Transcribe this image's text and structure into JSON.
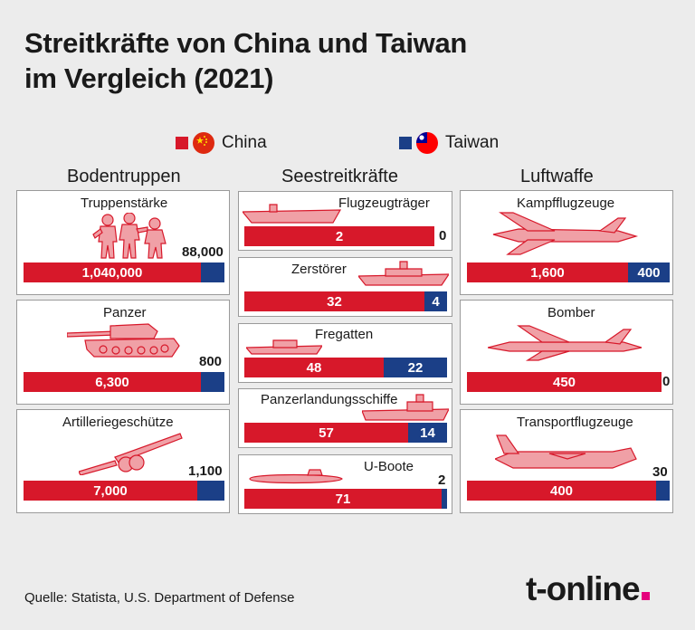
{
  "title_lines": [
    "Streitkräfte von China und Taiwan",
    "im Vergleich (2021)"
  ],
  "legend": {
    "china": "China",
    "taiwan": "Taiwan"
  },
  "colors": {
    "china": "#d7182a",
    "taiwan": "#1b3f87",
    "icon": "#f0a0a6",
    "icon_stroke": "#d7182a",
    "brand_dot": "#e5007d"
  },
  "sections": {
    "ground": "Bodentruppen",
    "sea": "Seestreitkräfte",
    "air": "Luftwaffe"
  },
  "panels": {
    "troops": {
      "label": "Truppenstärke",
      "icon": "soldiers-icon",
      "china": "1,040,000",
      "taiwan": "88,000"
    },
    "tanks": {
      "label": "Panzer",
      "icon": "tank-icon",
      "china": "6,300",
      "taiwan": "800"
    },
    "artillery": {
      "label": "Artilleriegeschütze",
      "icon": "artillery-icon",
      "china": "7,000",
      "taiwan": "1,100"
    },
    "carriers": {
      "label": "Flugzeugträger",
      "icon": "aircraft-carrier-icon",
      "china": "2",
      "taiwan": "0"
    },
    "destroyers": {
      "label": "Zerstörer",
      "icon": "destroyer-icon",
      "china": "32",
      "taiwan": "4"
    },
    "frigates": {
      "label": "Fregatten",
      "icon": "frigate-icon",
      "china": "48",
      "taiwan": "22"
    },
    "landing": {
      "label": "Panzerlandungsschiffe",
      "icon": "landing-ship-icon",
      "china": "57",
      "taiwan": "14"
    },
    "subs": {
      "label": "U-Boote",
      "icon": "submarine-icon",
      "china": "71",
      "taiwan": "2"
    },
    "fighters": {
      "label": "Kampfflugzeuge",
      "icon": "fighter-jet-icon",
      "china": "1,600",
      "taiwan": "400"
    },
    "bombers": {
      "label": "Bomber",
      "icon": "bomber-icon",
      "china": "450",
      "taiwan": "0"
    },
    "transport": {
      "label": "Transportflugzeuge",
      "icon": "transport-plane-icon",
      "china": "400",
      "taiwan": "30"
    }
  },
  "chart_data": [
    {
      "type": "bar",
      "title": "Truppenstärke",
      "categories": [
        "Truppenstärke"
      ],
      "series": [
        {
          "name": "China",
          "values": [
            1040000
          ]
        },
        {
          "name": "Taiwan",
          "values": [
            88000
          ]
        }
      ]
    },
    {
      "type": "bar",
      "title": "Panzer",
      "categories": [
        "Panzer"
      ],
      "series": [
        {
          "name": "China",
          "values": [
            6300
          ]
        },
        {
          "name": "Taiwan",
          "values": [
            800
          ]
        }
      ]
    },
    {
      "type": "bar",
      "title": "Artilleriegeschütze",
      "categories": [
        "Artilleriegeschütze"
      ],
      "series": [
        {
          "name": "China",
          "values": [
            7000
          ]
        },
        {
          "name": "Taiwan",
          "values": [
            1100
          ]
        }
      ]
    },
    {
      "type": "bar",
      "title": "Flugzeugträger",
      "categories": [
        "Flugzeugträger"
      ],
      "series": [
        {
          "name": "China",
          "values": [
            2
          ]
        },
        {
          "name": "Taiwan",
          "values": [
            0
          ]
        }
      ]
    },
    {
      "type": "bar",
      "title": "Zerstörer",
      "categories": [
        "Zerstörer"
      ],
      "series": [
        {
          "name": "China",
          "values": [
            32
          ]
        },
        {
          "name": "Taiwan",
          "values": [
            4
          ]
        }
      ]
    },
    {
      "type": "bar",
      "title": "Fregatten",
      "categories": [
        "Fregatten"
      ],
      "series": [
        {
          "name": "China",
          "values": [
            48
          ]
        },
        {
          "name": "Taiwan",
          "values": [
            22
          ]
        }
      ]
    },
    {
      "type": "bar",
      "title": "Panzerlandungsschiffe",
      "categories": [
        "Panzerlandungsschiffe"
      ],
      "series": [
        {
          "name": "China",
          "values": [
            57
          ]
        },
        {
          "name": "Taiwan",
          "values": [
            14
          ]
        }
      ]
    },
    {
      "type": "bar",
      "title": "U-Boote",
      "categories": [
        "U-Boote"
      ],
      "series": [
        {
          "name": "China",
          "values": [
            71
          ]
        },
        {
          "name": "Taiwan",
          "values": [
            2
          ]
        }
      ]
    },
    {
      "type": "bar",
      "title": "Kampfflugzeuge",
      "categories": [
        "Kampfflugzeuge"
      ],
      "series": [
        {
          "name": "China",
          "values": [
            1600
          ]
        },
        {
          "name": "Taiwan",
          "values": [
            400
          ]
        }
      ]
    },
    {
      "type": "bar",
      "title": "Bomber",
      "categories": [
        "Bomber"
      ],
      "series": [
        {
          "name": "China",
          "values": [
            450
          ]
        },
        {
          "name": "Taiwan",
          "values": [
            0
          ]
        }
      ]
    },
    {
      "type": "bar",
      "title": "Transportflugzeuge",
      "categories": [
        "Transportflugzeuge"
      ],
      "series": [
        {
          "name": "China",
          "values": [
            400
          ]
        },
        {
          "name": "Taiwan",
          "values": [
            30
          ]
        }
      ]
    }
  ],
  "source": "Quelle: Statista, U.S. Department of Defense",
  "logo": "t-online"
}
